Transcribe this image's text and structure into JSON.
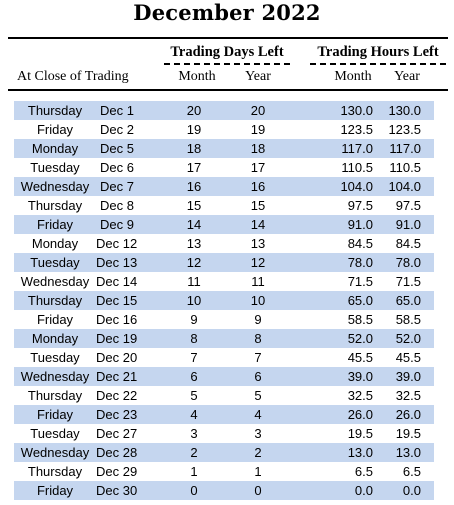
{
  "title": "December 2022",
  "header": {
    "row_label": "At Close of Trading",
    "group_days": "Trading Days Left",
    "group_hours": "Trading Hours Left",
    "month": "Month",
    "year": "Year"
  },
  "rows": [
    {
      "day": "Thursday",
      "date": "Dec 1",
      "days_month": "20",
      "days_year": "20",
      "hours_month": "130.0",
      "hours_year": "130.0",
      "shaded": true
    },
    {
      "day": "Friday",
      "date": "Dec 2",
      "days_month": "19",
      "days_year": "19",
      "hours_month": "123.5",
      "hours_year": "123.5",
      "shaded": false
    },
    {
      "day": "Monday",
      "date": "Dec 5",
      "days_month": "18",
      "days_year": "18",
      "hours_month": "117.0",
      "hours_year": "117.0",
      "shaded": true
    },
    {
      "day": "Tuesday",
      "date": "Dec 6",
      "days_month": "17",
      "days_year": "17",
      "hours_month": "110.5",
      "hours_year": "110.5",
      "shaded": false
    },
    {
      "day": "Wednesday",
      "date": "Dec 7",
      "days_month": "16",
      "days_year": "16",
      "hours_month": "104.0",
      "hours_year": "104.0",
      "shaded": true
    },
    {
      "day": "Thursday",
      "date": "Dec 8",
      "days_month": "15",
      "days_year": "15",
      "hours_month": "97.5",
      "hours_year": "97.5",
      "shaded": false
    },
    {
      "day": "Friday",
      "date": "Dec 9",
      "days_month": "14",
      "days_year": "14",
      "hours_month": "91.0",
      "hours_year": "91.0",
      "shaded": true
    },
    {
      "day": "Monday",
      "date": "Dec 12",
      "days_month": "13",
      "days_year": "13",
      "hours_month": "84.5",
      "hours_year": "84.5",
      "shaded": false
    },
    {
      "day": "Tuesday",
      "date": "Dec 13",
      "days_month": "12",
      "days_year": "12",
      "hours_month": "78.0",
      "hours_year": "78.0",
      "shaded": true
    },
    {
      "day": "Wednesday",
      "date": "Dec 14",
      "days_month": "11",
      "days_year": "11",
      "hours_month": "71.5",
      "hours_year": "71.5",
      "shaded": false
    },
    {
      "day": "Thursday",
      "date": "Dec 15",
      "days_month": "10",
      "days_year": "10",
      "hours_month": "65.0",
      "hours_year": "65.0",
      "shaded": true
    },
    {
      "day": "Friday",
      "date": "Dec 16",
      "days_month": "9",
      "days_year": "9",
      "hours_month": "58.5",
      "hours_year": "58.5",
      "shaded": false
    },
    {
      "day": "Monday",
      "date": "Dec 19",
      "days_month": "8",
      "days_year": "8",
      "hours_month": "52.0",
      "hours_year": "52.0",
      "shaded": true
    },
    {
      "day": "Tuesday",
      "date": "Dec 20",
      "days_month": "7",
      "days_year": "7",
      "hours_month": "45.5",
      "hours_year": "45.5",
      "shaded": false
    },
    {
      "day": "Wednesday",
      "date": "Dec 21",
      "days_month": "6",
      "days_year": "6",
      "hours_month": "39.0",
      "hours_year": "39.0",
      "shaded": true
    },
    {
      "day": "Thursday",
      "date": "Dec 22",
      "days_month": "5",
      "days_year": "5",
      "hours_month": "32.5",
      "hours_year": "32.5",
      "shaded": false
    },
    {
      "day": "Friday",
      "date": "Dec 23",
      "days_month": "4",
      "days_year": "4",
      "hours_month": "26.0",
      "hours_year": "26.0",
      "shaded": true
    },
    {
      "day": "Tuesday",
      "date": "Dec 27",
      "days_month": "3",
      "days_year": "3",
      "hours_month": "19.5",
      "hours_year": "19.5",
      "shaded": false
    },
    {
      "day": "Wednesday",
      "date": "Dec 28",
      "days_month": "2",
      "days_year": "2",
      "hours_month": "13.0",
      "hours_year": "13.0",
      "shaded": true
    },
    {
      "day": "Thursday",
      "date": "Dec 29",
      "days_month": "1",
      "days_year": "1",
      "hours_month": "6.5",
      "hours_year": "6.5",
      "shaded": false
    },
    {
      "day": "Friday",
      "date": "Dec 30",
      "days_month": "0",
      "days_year": "0",
      "hours_month": "0.0",
      "hours_year": "0.0",
      "shaded": true
    }
  ],
  "colors": {
    "row_shade": "#c5d6ef",
    "text": "#000000",
    "background": "#ffffff"
  }
}
